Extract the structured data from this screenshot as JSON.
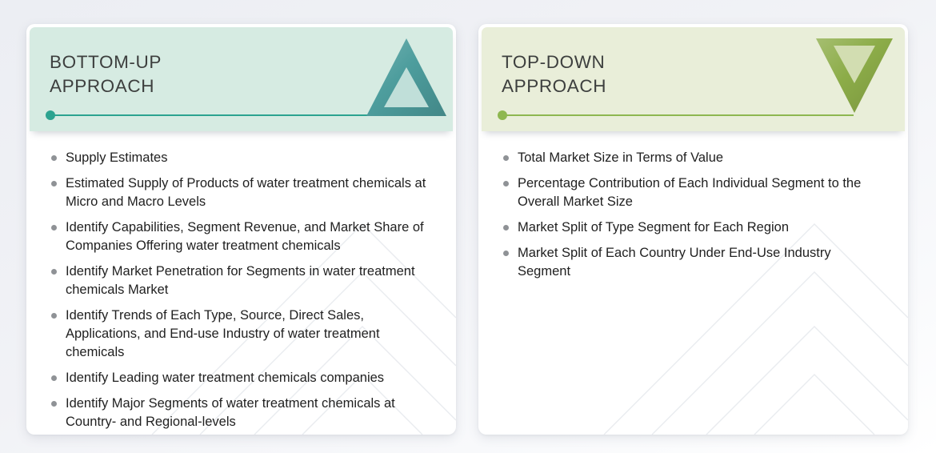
{
  "panels": [
    {
      "id": "bottom-up",
      "title_lines": [
        "BOTTOM-UP",
        "APPROACH"
      ],
      "triangle_direction": "up",
      "colors": {
        "header_bg": "#d6ebe2",
        "accent": "#2ca390",
        "triangle": "#4d9d9d",
        "triangle_inner": "#c0dfd9"
      },
      "items": [
        "Supply Estimates",
        "Estimated Supply of Products of water treatment chemicals at Micro and Macro Levels",
        "Identify Capabilities, Segment Revenue, and Market Share of Companies Offering water treatment chemicals",
        "Identify Market Penetration for Segments in water treatment chemicals Market",
        "Identify Trends of Each Type, Source, Direct Sales, Applications, and End-use Industry of water treatment chemicals",
        "Identify Leading water treatment chemicals companies",
        "Identify Major Segments of water treatment chemicals at Country- and Regional-levels"
      ]
    },
    {
      "id": "top-down",
      "title_lines": [
        "TOP-DOWN",
        "APPROACH"
      ],
      "triangle_direction": "down",
      "colors": {
        "header_bg": "#e9eed9",
        "accent": "#8eb750",
        "triangle": "#8cac48",
        "triangle_inner": "#d2ddb1"
      },
      "items": [
        "Total Market Size in Terms of Value",
        "Percentage Contribution of Each Individual Segment to the Overall Market Size",
        "Market Split of Type Segment for Each Region",
        "Market Split of Each Country Under End-Use Industry Segment"
      ]
    }
  ],
  "watermark_color": "#e9ebef"
}
